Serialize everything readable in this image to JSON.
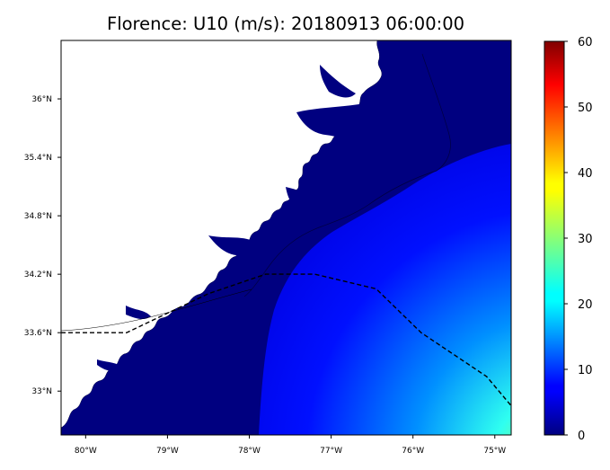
{
  "chart_data": {
    "type": "heatmap",
    "title": "Florence: U10 (m/s): 20180913 06:00:00",
    "xlabel": "",
    "ylabel": "",
    "x_ticks": [
      "80°W",
      "79°W",
      "78°W",
      "77°W",
      "76°W",
      "75°W"
    ],
    "x_tick_values": [
      -80,
      -79,
      -78,
      -77,
      -76,
      -75
    ],
    "y_ticks": [
      "36°N",
      "35.4°N",
      "34.8°N",
      "34.2°N",
      "33.6°N",
      "33°N"
    ],
    "y_tick_values": [
      36,
      35.4,
      34.8,
      34.2,
      33.6,
      33
    ],
    "xlim": [
      -80.3,
      -74.8
    ],
    "ylim": [
      32.55,
      36.6
    ],
    "colormap": "jet",
    "colorbar": {
      "ticks": [
        "0",
        "10",
        "20",
        "30",
        "40",
        "50",
        "60"
      ],
      "tick_values": [
        0,
        10,
        20,
        30,
        40,
        50,
        60
      ],
      "range": [
        0,
        60
      ]
    },
    "background_value": 0,
    "field_max_value": 28,
    "land_color": "#ffffff",
    "storm_track": [
      {
        "lon": -80.3,
        "lat": 33.6
      },
      {
        "lon": -79.5,
        "lat": 33.6
      },
      {
        "lon": -79.0,
        "lat": 33.8
      },
      {
        "lon": -78.5,
        "lat": 34.0
      },
      {
        "lon": -78.15,
        "lat": 34.1
      },
      {
        "lon": -77.8,
        "lat": 34.2
      },
      {
        "lon": -77.2,
        "lat": 34.2
      },
      {
        "lon": -76.45,
        "lat": 34.05
      },
      {
        "lon": -75.9,
        "lat": 33.6
      },
      {
        "lon": -75.1,
        "lat": 33.15
      },
      {
        "lon": -74.8,
        "lat": 32.85
      }
    ]
  }
}
